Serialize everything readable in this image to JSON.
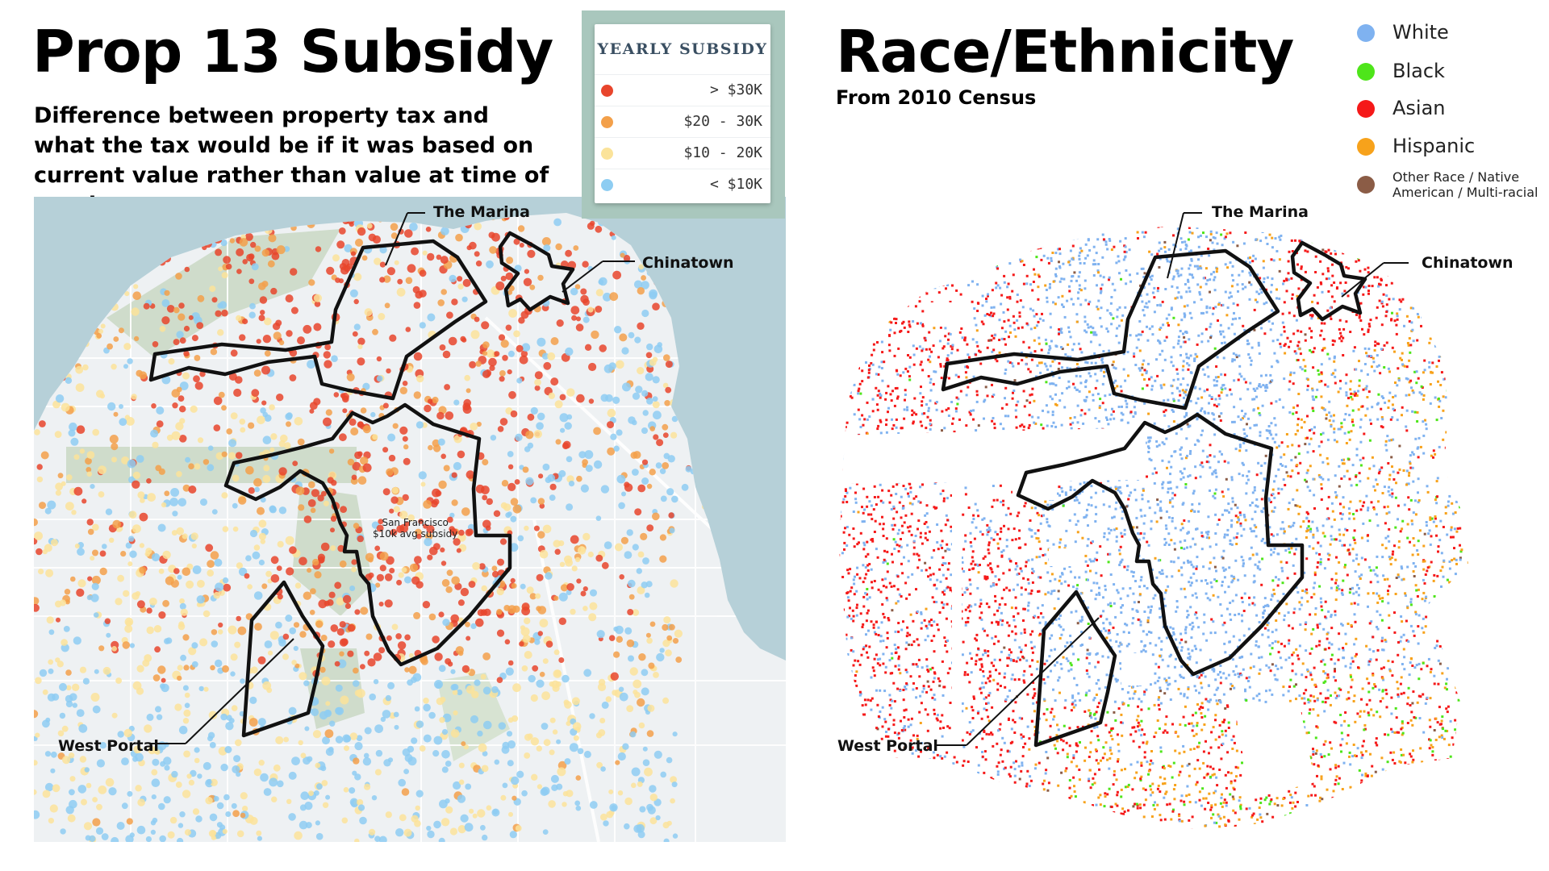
{
  "left_panel": {
    "title": "Prop 13 Subsidy",
    "subtitle": "Difference between property tax and what the tax would be if it was based on current value rather than value at time of purchase.",
    "legend": {
      "title": "YEARLY SUBSIDY",
      "items": [
        {
          "label": "> $30K",
          "color": "#e8452c"
        },
        {
          "label": "$20 - 30K",
          "color": "#f3a04a"
        },
        {
          "label": "$10 - 20K",
          "color": "#fbe39a"
        },
        {
          "label": "< $10K",
          "color": "#8ecdf2"
        }
      ]
    },
    "center_label_line1": "San Francisco",
    "center_label_line2": "$10k avg subsidy",
    "colors": {
      "water": "#b6d0d8",
      "land": "#eef1f3",
      "park": "#cfdccb"
    }
  },
  "right_panel": {
    "title": "Race/Ethnicity",
    "subtitle": "From 2010 Census",
    "legend": [
      {
        "label": "White",
        "color": "#7fb2f0"
      },
      {
        "label": "Black",
        "color": "#4ee51a"
      },
      {
        "label": "Asian",
        "color": "#f51919"
      },
      {
        "label": "Hispanic",
        "color": "#f7a21b"
      },
      {
        "label": "Other Race / Native American / Multi-racial",
        "line1": "Other Race / Native",
        "line2": "American / Multi-racial",
        "color": "#8b5c46"
      }
    ]
  },
  "callouts": {
    "marina": "The Marina",
    "chinatown": "Chinatown",
    "west_portal": "West Portal"
  }
}
